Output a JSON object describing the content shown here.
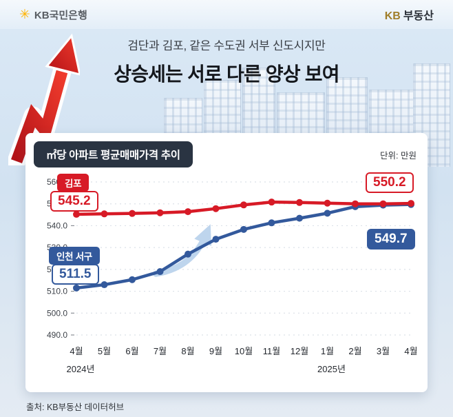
{
  "header": {
    "brand_left": "KB국민은행",
    "brand_right_kb": "KB",
    "brand_right_name": "부동산"
  },
  "title": {
    "subtitle": "검단과 김포, 같은 수도권 서부 신도시지만",
    "main": "상승세는 서로 다른 양상 보여"
  },
  "card": {
    "chart_title": "㎡당 아파트 평균매매가격 추이",
    "unit_label": "단위: 만원"
  },
  "callouts": {
    "gimpo_name": "김포",
    "gimpo_start": "545.2",
    "gimpo_end": "550.2",
    "incheon_name": "인천 서구",
    "incheon_start": "511.5",
    "incheon_end": "549.7"
  },
  "footer": {
    "source": "출처: KB부동산 데이터허브"
  },
  "colors": {
    "red": "#d71a26",
    "blue": "#33599c",
    "navy": "#2a3442",
    "sky": "#d9e7f4"
  },
  "chart_data": {
    "type": "line",
    "title": "㎡당 아파트 평균매매가격 추이",
    "unit": "만원",
    "categories": [
      "4월",
      "5월",
      "6월",
      "7월",
      "8월",
      "9월",
      "10월",
      "11월",
      "12월",
      "1월",
      "2월",
      "3월",
      "4월"
    ],
    "year_labels": [
      {
        "label": "2024년",
        "index": 0
      },
      {
        "label": "2025년",
        "index": 9
      }
    ],
    "series": [
      {
        "name": "김포",
        "color": "#d71a26",
        "values": [
          545.2,
          545.4,
          545.6,
          545.9,
          546.4,
          547.8,
          549.5,
          550.8,
          550.6,
          550.3,
          550.0,
          550.0,
          550.2
        ]
      },
      {
        "name": "인천 서구",
        "color": "#33599c",
        "values": [
          511.5,
          513.0,
          515.3,
          519.0,
          527.0,
          533.8,
          538.3,
          541.3,
          543.4,
          545.7,
          548.7,
          549.4,
          549.7
        ]
      }
    ],
    "ylim": [
      490,
      560
    ],
    "yticks": [
      560,
      550,
      540,
      530,
      520,
      510,
      500,
      490
    ],
    "grid": true,
    "legend_position": "inline-callouts"
  }
}
